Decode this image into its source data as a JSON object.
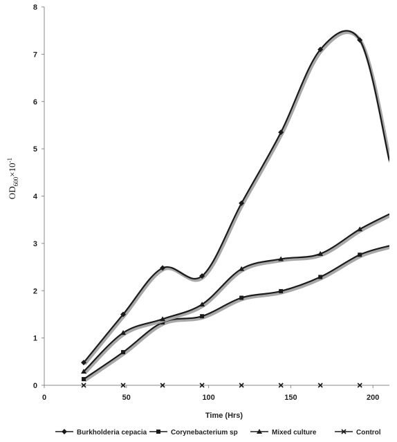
{
  "chart_data": {
    "type": "line",
    "title": "",
    "xlabel": "Time (Hrs)",
    "ylabel": "OD600×10⁻¹",
    "ylabel_main": "OD",
    "ylabel_sub": "600",
    "ylabel_mid": "×10",
    "ylabel_sup": "-1",
    "xlim": [
      0,
      210
    ],
    "ylim": [
      0,
      8
    ],
    "xticks": [
      "0",
      "50",
      "100",
      "150",
      "200"
    ],
    "yticks": [
      "0",
      "1",
      "2",
      "3",
      "4",
      "5",
      "6",
      "7",
      "8"
    ],
    "legend_position": "bottom",
    "grid": false,
    "x": [
      24,
      48,
      72,
      96,
      120,
      144,
      168,
      192,
      210
    ],
    "series": [
      {
        "name": "Burkholderia cepacia",
        "marker": "diamond",
        "values": [
          0.48,
          1.5,
          2.48,
          2.31,
          3.85,
          5.35,
          7.1,
          7.3,
          4.75
        ]
      },
      {
        "name": "Corynebacterium sp",
        "marker": "square",
        "values": [
          0.13,
          0.7,
          1.33,
          1.46,
          1.85,
          1.99,
          2.29,
          2.76,
          2.95
        ]
      },
      {
        "name": "Mixed culture",
        "marker": "triangle",
        "values": [
          0.29,
          1.11,
          1.4,
          1.71,
          2.46,
          2.67,
          2.78,
          3.3,
          3.62
        ]
      },
      {
        "name": "Control",
        "marker": "x",
        "values": [
          0,
          0,
          0,
          0,
          0,
          0,
          0,
          0,
          0
        ]
      }
    ],
    "line_color": "#1a1a1a",
    "shadow_color": "#a8a8a8"
  }
}
